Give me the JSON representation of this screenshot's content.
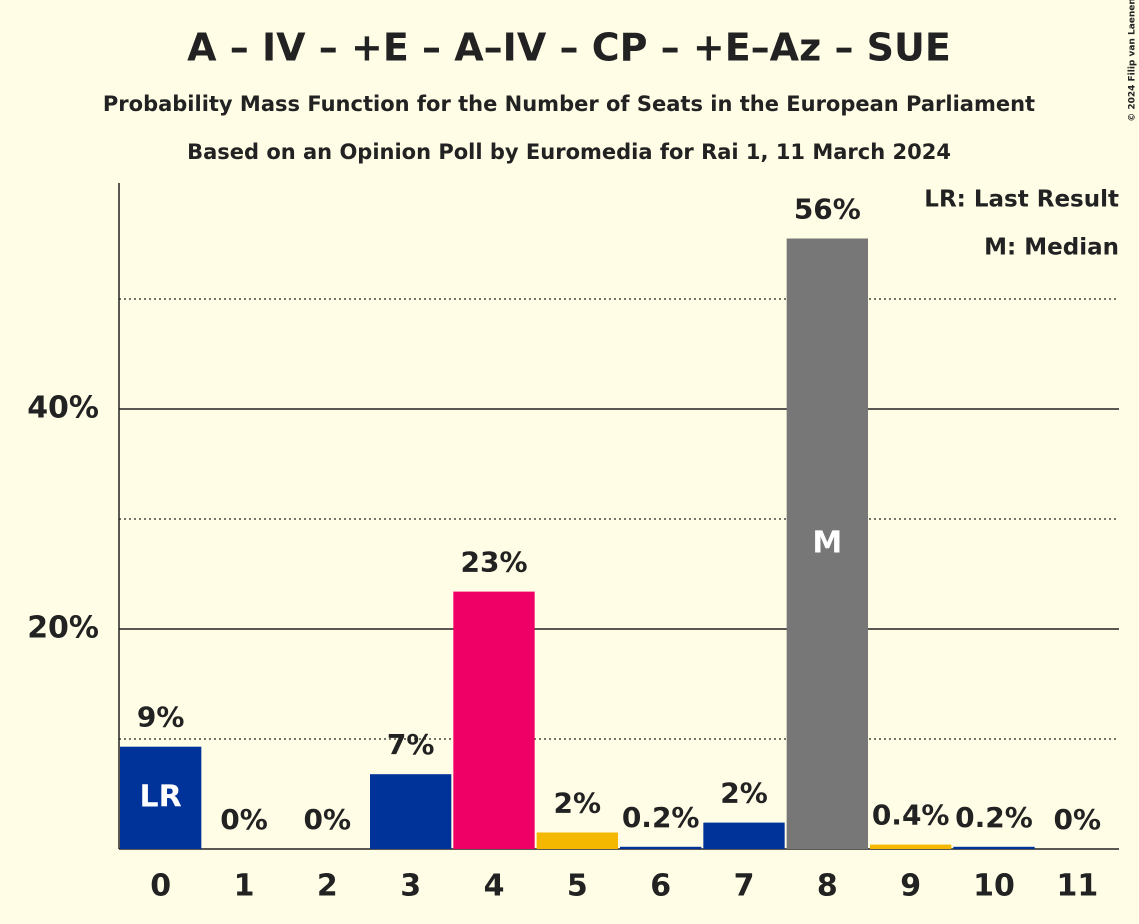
{
  "chart_data": {
    "type": "bar",
    "title": "A – IV – +E – A–IV – CP – +E–Az – SUE",
    "subtitle": "Probability Mass Function for the Number of Seats in the European Parliament",
    "subtitle2": "Based on an Opinion Poll by Euromedia for Rai 1, 11 March 2024",
    "copyright": "© 2024 Filip van Laenen",
    "legend": [
      "LR: Last Result",
      "M: Median"
    ],
    "legend_position": "upper right",
    "categories": [
      "0",
      "1",
      "2",
      "3",
      "4",
      "5",
      "6",
      "7",
      "8",
      "9",
      "10",
      "11"
    ],
    "values": [
      9.3,
      0,
      0,
      6.8,
      23.4,
      1.5,
      0.2,
      2.4,
      55.5,
      0.4,
      0.2,
      0
    ],
    "value_labels": [
      "9%",
      "0%",
      "0%",
      "7%",
      "23%",
      "2%",
      "0.2%",
      "2%",
      "56%",
      "0.4%",
      "0.2%",
      "0%"
    ],
    "colors": [
      "#003399",
      "#003399",
      "#003399",
      "#003399",
      "#ee0066",
      "#f5b800",
      "#003399",
      "#003399",
      "#777777",
      "#f5b800",
      "#003399",
      "#003399"
    ],
    "inner_labels": [
      "LR",
      null,
      null,
      null,
      null,
      null,
      null,
      null,
      "M",
      null,
      null,
      null
    ],
    "ylim": [
      0,
      60
    ],
    "yticks": [
      {
        "value": 20,
        "label": "20%"
      },
      {
        "value": 40,
        "label": "40%"
      }
    ],
    "minor_gridlines": [
      10,
      30,
      50
    ],
    "grid": true
  }
}
